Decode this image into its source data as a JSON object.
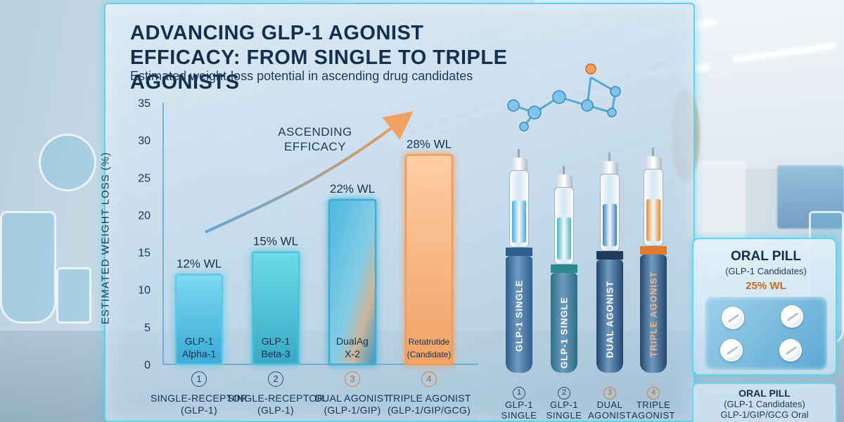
{
  "header": {
    "title": "ADVANCING GLP-1 AGONIST EFFICACY: FROM SINGLE TO TRIPLE AGONISTS",
    "subtitle": "Estimated weight-loss potential in ascending drug candidates"
  },
  "chart_data": {
    "type": "bar",
    "title": "ADVANCING GLP-1 AGONIST EFFICACY: FROM SINGLE TO TRIPLE AGONISTS",
    "subtitle": "Estimated weight-loss potential in ascending drug candidates",
    "ylabel": "ESTIMATED WEIGHT LOSS (%)",
    "xlabel": "",
    "ylim": [
      0,
      35
    ],
    "yticks": [
      0,
      5,
      10,
      15,
      20,
      25,
      30,
      35
    ],
    "grid": false,
    "categories": [
      "SINGLE-RECEPTOR (GLP-1)",
      "SINGLE-RECEPTOR (GLP-1)",
      "DUAL AGONIST (GLP-1/GIP)",
      "TRIPLE AGONIST (GLP-1/GIP/GCG)"
    ],
    "values": [
      12,
      15,
      22,
      28
    ],
    "value_labels": [
      "12% WL",
      "15% WL",
      "22% WL",
      "28% WL"
    ],
    "bar_inner_labels": [
      [
        "GLP-1",
        "Alpha-1"
      ],
      [
        "GLP-1",
        "Beta-3"
      ],
      [
        "DualAg",
        "X-2"
      ],
      [
        "Retatrutide",
        "(Candidate)"
      ]
    ],
    "bar_numbers": [
      "1",
      "2",
      "3",
      "4"
    ],
    "category_labels": [
      [
        "SINGLE-RECEPTOR",
        "(GLP-1)"
      ],
      [
        "SINGLE-RECEPTOR",
        "(GLP-1)"
      ],
      [
        "DUAL AGONIST",
        "(GLP-1/GIP)"
      ],
      [
        "TRIPLE AGONIST",
        "(GLP-1/GIP/GCG)"
      ]
    ],
    "bar_colors": [
      "#5fc9e6",
      "#4fc3d9",
      "#3aaed6",
      "#f39a54"
    ],
    "annotation": [
      "ASCENDING",
      "EFFICACY"
    ]
  },
  "pens": [
    {
      "number": "1",
      "text": "GLP-1 SINGLE",
      "caption": [
        "GLP-1",
        "SINGLE"
      ],
      "body_color": "#2f5f8c",
      "band_color": "#2f5f8c",
      "fluid_color": "#48a9d8"
    },
    {
      "number": "2",
      "text": "GLP-1 SINGLE",
      "caption": [
        "GLP-1",
        "SINGLE"
      ],
      "body_color": "#2b6f82",
      "band_color": "#2b8a8f",
      "fluid_color": "#4cb6c4"
    },
    {
      "number": "3",
      "text": "DUAL AGONIST",
      "caption": [
        "DUAL",
        "AGONIST"
      ],
      "body_color": "#22476f",
      "band_color": "#1e3b5e",
      "fluid_color": "#3c7fc2"
    },
    {
      "number": "4",
      "text": "TRIPLE AGONIST",
      "caption": [
        "TRIPLE",
        "AGONIST"
      ],
      "body_color": "#27476b",
      "band_color": "#e07b2e",
      "fluid_color": "#e58a3a"
    }
  ],
  "oral_pill": {
    "title": "ORAL PILL",
    "subtitle": "(GLP-1 Candidates)",
    "value": "25% WL",
    "footer_title": "ORAL PILL",
    "footer_line1": "(GLP-1 Candidates)",
    "footer_line2": "GLP-1/GIP/GCG Oral"
  },
  "colors": {
    "accent": "#56d2eb",
    "orange": "#e07b2e",
    "text": "#14304f"
  }
}
